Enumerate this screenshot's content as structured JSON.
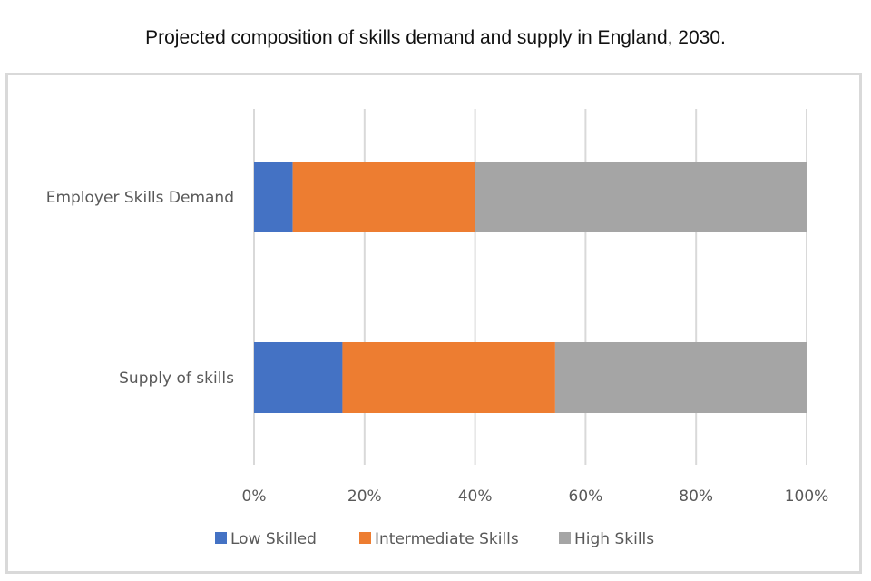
{
  "chart_data": {
    "type": "bar",
    "orientation": "horizontal",
    "stacked": true,
    "percent_stacked": true,
    "title": "Projected composition of skills demand and supply in England, 2030.",
    "categories": [
      "Employer Skills Demand",
      "Supply of skills"
    ],
    "series": [
      {
        "name": "Low Skilled",
        "color": "#4472c4",
        "values": [
          7,
          16
        ]
      },
      {
        "name": "Intermediate Skills",
        "color": "#ed7d31",
        "values": [
          33,
          38.5
        ]
      },
      {
        "name": "High Skills",
        "color": "#a5a5a5",
        "values": [
          60,
          45.5
        ]
      }
    ],
    "xlim": [
      0,
      100
    ],
    "x_ticks": [
      "0%",
      "20%",
      "40%",
      "60%",
      "80%",
      "100%"
    ],
    "grid": true,
    "legend_position": "bottom"
  }
}
